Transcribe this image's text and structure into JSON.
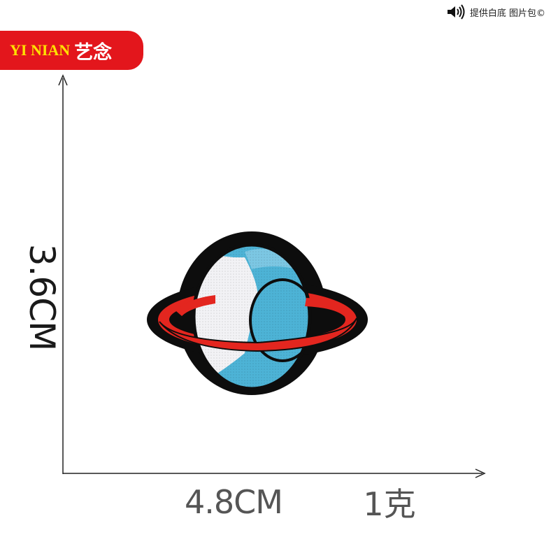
{
  "brand": {
    "latin": "YI NIAN",
    "cjk": "艺念",
    "badge_color": "#e3161c",
    "latin_color": "#ffe100"
  },
  "watermark": {
    "icon": "speaker-icon",
    "text": "提供白底 图片包©"
  },
  "dimensions": {
    "height": "3.6CM",
    "width": "4.8CM",
    "weight": "1克"
  },
  "product": {
    "icon": "planet-patch-icon",
    "colors": {
      "outline": "#0d0d0d",
      "blue": "#4db3d6",
      "white": "#f2f2f5",
      "ring": "#e3261f"
    }
  }
}
